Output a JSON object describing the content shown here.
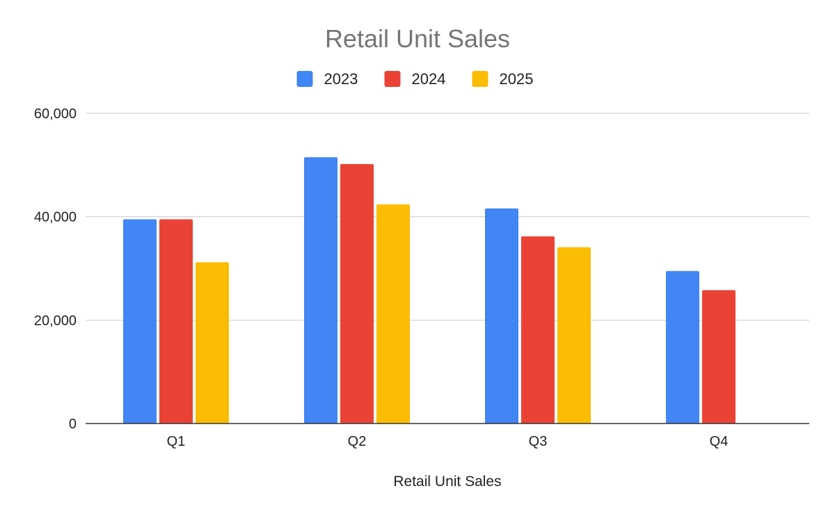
{
  "chart_data": {
    "type": "bar",
    "title": "Retail Unit Sales",
    "xlabel": "Retail Unit Sales",
    "ylabel": "",
    "categories": [
      "Q1",
      "Q2",
      "Q3",
      "Q4"
    ],
    "series": [
      {
        "name": "2023",
        "color": "#4285f4",
        "values": [
          39500,
          51500,
          41600,
          29500
        ]
      },
      {
        "name": "2024",
        "color": "#ea4335",
        "values": [
          39500,
          50200,
          36200,
          25800
        ]
      },
      {
        "name": "2025",
        "color": "#fbbc04",
        "values": [
          31200,
          42400,
          34100,
          null
        ]
      }
    ],
    "ylim": [
      0,
      60000
    ],
    "yticks": [
      0,
      20000,
      40000,
      60000
    ],
    "ytick_labels": [
      "0",
      "20,000",
      "40,000",
      "60,000"
    ],
    "grid": true,
    "legend_position": "top-center"
  }
}
